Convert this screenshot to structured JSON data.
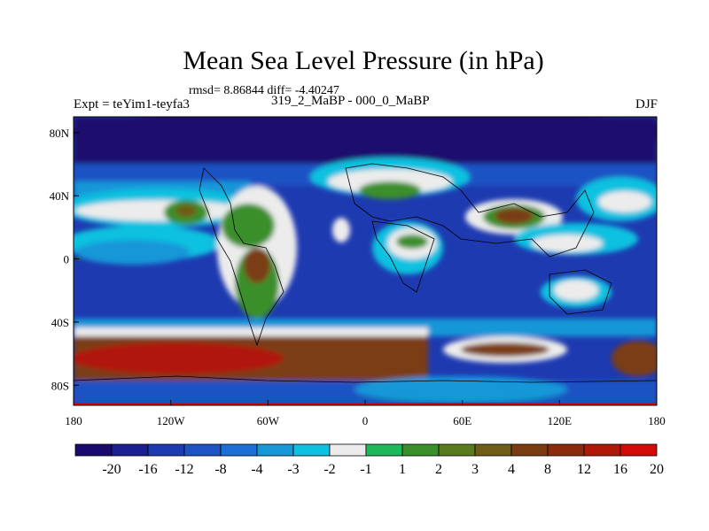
{
  "title": "Mean Sea Level Pressure (in hPa)",
  "stats_line": "rmsd= 8.86844 diff= -4.40247",
  "left_label": "Expt = teYim1-teyfa3",
  "center_label": "319_2_MaBP - 000_0_MaBP",
  "right_label": "DJF",
  "lat_ticks": [
    {
      "label": "80N",
      "value": 80
    },
    {
      "label": "40N",
      "value": 40
    },
    {
      "label": "0",
      "value": 0
    },
    {
      "label": "40S",
      "value": -40
    },
    {
      "label": "80S",
      "value": -80
    }
  ],
  "lon_ticks": [
    {
      "label": "180",
      "value": -180
    },
    {
      "label": "120W",
      "value": -120
    },
    {
      "label": "60W",
      "value": -60
    },
    {
      "label": "0",
      "value": 0
    },
    {
      "label": "60E",
      "value": 60
    },
    {
      "label": "120E",
      "value": 120
    },
    {
      "label": "180",
      "value": 180
    }
  ],
  "colorbar": {
    "colors": [
      "#1a0a6e",
      "#1b1f8f",
      "#1e3ab0",
      "#1f52c4",
      "#1c6fd4",
      "#1697d8",
      "#0fc1e0",
      "#ececec",
      "#1db85a",
      "#3a8f2a",
      "#5a7a20",
      "#6e5c18",
      "#7a3d12",
      "#8c2a0c",
      "#b01808",
      "#d40a08"
    ],
    "labels": [
      "-20",
      "-16",
      "-12",
      "-8",
      "-4",
      "-3",
      "-2",
      "-1",
      "1",
      "2",
      "3",
      "4",
      "8",
      "12",
      "16",
      "20"
    ]
  }
}
